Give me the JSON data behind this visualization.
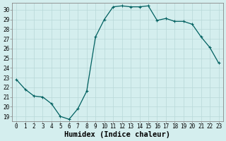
{
  "x": [
    0,
    1,
    2,
    3,
    4,
    5,
    6,
    7,
    8,
    9,
    10,
    11,
    12,
    13,
    14,
    15,
    16,
    17,
    18,
    19,
    20,
    21,
    22,
    23
  ],
  "y": [
    22.8,
    21.8,
    21.1,
    21.0,
    20.3,
    19.0,
    18.7,
    19.8,
    21.6,
    27.2,
    29.0,
    30.3,
    30.4,
    30.3,
    30.3,
    30.4,
    28.9,
    29.1,
    28.8,
    28.8,
    28.5,
    27.2,
    26.1,
    24.5
  ],
  "line_color": "#006060",
  "marker": "+",
  "marker_size": 3.5,
  "marker_lw": 0.8,
  "line_width": 0.9,
  "bg_color": "#d4eeee",
  "grid_color": "#b8d8d8",
  "xlabel": "Humidex (Indice chaleur)",
  "ylim_min": 18.5,
  "ylim_max": 30.7,
  "xlim_min": -0.5,
  "xlim_max": 23.5,
  "yticks": [
    19,
    20,
    21,
    22,
    23,
    24,
    25,
    26,
    27,
    28,
    29,
    30
  ],
  "xticks": [
    0,
    1,
    2,
    3,
    4,
    5,
    6,
    7,
    8,
    9,
    10,
    11,
    12,
    13,
    14,
    15,
    16,
    17,
    18,
    19,
    20,
    21,
    22,
    23
  ],
  "tick_fontsize": 5.5,
  "xlabel_fontsize": 7.5,
  "spine_color": "#888888"
}
